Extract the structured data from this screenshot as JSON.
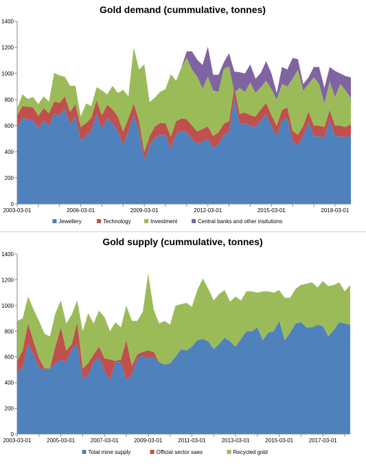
{
  "chart_data": [
    {
      "type": "area",
      "stacked": true,
      "title": "Gold demand (cummulative, tonnes)",
      "xlabel": "",
      "ylabel": "",
      "ylim": [
        0,
        1400
      ],
      "yticks": [
        "0",
        "200",
        "400",
        "600",
        "800",
        "1000",
        "1200",
        "1400"
      ],
      "xtick_labels": [
        "2003-03-01",
        "2006-03-01",
        "2009-03-01",
        "2012-03-01",
        "2015-03-01",
        "2018-03-01"
      ],
      "x": [
        "2003-03-01",
        "2003-06-01",
        "2003-09-01",
        "2003-12-01",
        "2004-03-01",
        "2004-06-01",
        "2004-09-01",
        "2004-12-01",
        "2005-03-01",
        "2005-06-01",
        "2005-09-01",
        "2005-12-01",
        "2006-03-01",
        "2006-06-01",
        "2006-09-01",
        "2006-12-01",
        "2007-03-01",
        "2007-06-01",
        "2007-09-01",
        "2007-12-01",
        "2008-03-01",
        "2008-06-01",
        "2008-09-01",
        "2008-12-01",
        "2009-03-01",
        "2009-06-01",
        "2009-09-01",
        "2009-12-01",
        "2010-03-01",
        "2010-06-01",
        "2010-09-01",
        "2010-12-01",
        "2011-03-01",
        "2011-06-01",
        "2011-09-01",
        "2011-12-01",
        "2012-03-01",
        "2012-06-01",
        "2012-09-01",
        "2012-12-01",
        "2013-03-01",
        "2013-06-01",
        "2013-09-01",
        "2013-12-01",
        "2014-03-01",
        "2014-06-01",
        "2014-09-01",
        "2014-12-01",
        "2015-03-01",
        "2015-06-01",
        "2015-09-01",
        "2015-12-01",
        "2016-03-01",
        "2016-06-01",
        "2016-09-01",
        "2016-12-01",
        "2017-03-01",
        "2017-06-01",
        "2017-09-01",
        "2017-12-01",
        "2018-03-01",
        "2018-06-01",
        "2018-09-01",
        "2018-12-01"
      ],
      "series": [
        {
          "name": "Jewellery",
          "color": "#4f81bd",
          "values": [
            580,
            660,
            650,
            640,
            580,
            640,
            600,
            690,
            680,
            730,
            610,
            670,
            490,
            520,
            560,
            690,
            570,
            660,
            620,
            560,
            450,
            560,
            680,
            560,
            340,
            450,
            510,
            530,
            530,
            420,
            540,
            560,
            550,
            500,
            460,
            480,
            500,
            430,
            460,
            530,
            550,
            810,
            610,
            620,
            600,
            590,
            640,
            690,
            600,
            520,
            640,
            660,
            480,
            450,
            520,
            630,
            520,
            520,
            510,
            640,
            520,
            520,
            510,
            530
          ]
        },
        {
          "name": "Technology",
          "color": "#c0504d",
          "values": [
            100,
            90,
            95,
            100,
            95,
            95,
            95,
            95,
            95,
            95,
            95,
            95,
            100,
            100,
            100,
            105,
            110,
            100,
            105,
            110,
            105,
            95,
            90,
            80,
            60,
            70,
            85,
            90,
            90,
            95,
            95,
            95,
            100,
            100,
            95,
            95,
            95,
            90,
            90,
            85,
            85,
            85,
            80,
            80,
            80,
            80,
            85,
            85,
            80,
            80,
            80,
            80,
            80,
            80,
            80,
            80,
            80,
            80,
            80,
            80,
            80,
            80,
            80,
            80
          ]
        },
        {
          "name": "Investment",
          "color": "#9bbb59",
          "values": [
            50,
            90,
            60,
            80,
            90,
            90,
            90,
            220,
            210,
            150,
            200,
            140,
            80,
            150,
            90,
            100,
            190,
            80,
            180,
            180,
            320,
            170,
            430,
            390,
            670,
            260,
            220,
            240,
            260,
            480,
            310,
            390,
            470,
            430,
            420,
            310,
            380,
            350,
            310,
            420,
            420,
            -40,
            200,
            160,
            250,
            180,
            170,
            170,
            200,
            200,
            200,
            160,
            400,
            500,
            270,
            210,
            370,
            320,
            180,
            220,
            220,
            320,
            280,
            200
          ]
        },
        {
          "name": "Central banks and other insitutions",
          "color": "#8064a2",
          "values": [
            0,
            0,
            0,
            0,
            0,
            0,
            0,
            0,
            0,
            0,
            0,
            0,
            0,
            0,
            0,
            0,
            0,
            0,
            0,
            0,
            0,
            0,
            0,
            0,
            0,
            0,
            0,
            0,
            0,
            0,
            0,
            0,
            50,
            140,
            130,
            180,
            230,
            120,
            130,
            50,
            100,
            160,
            120,
            140,
            140,
            110,
            110,
            150,
            120,
            50,
            130,
            130,
            160,
            80,
            50,
            50,
            80,
            130,
            120,
            110,
            200,
            80,
            110,
            160
          ]
        }
      ],
      "legend": [
        "Jewellery",
        "Technology",
        "Investment",
        "Central banks and other insitutions"
      ],
      "legend_placement": "bottom",
      "grid": false
    },
    {
      "type": "area",
      "stacked": true,
      "title": "Gold supply (cummulative, tonnes)",
      "xlabel": "",
      "ylabel": "",
      "ylim": [
        0,
        1400
      ],
      "yticks": [
        "0",
        "200",
        "400",
        "600",
        "800",
        "1000",
        "1200",
        "1400"
      ],
      "xtick_labels": [
        "2003-03-01",
        "2005-03-01",
        "2007-03-01",
        "2009-03-01",
        "2011-03-01",
        "2013-03-01",
        "2015-03-01",
        "2017-03-01"
      ],
      "x": [
        "2003-03-01",
        "2003-06-01",
        "2003-09-01",
        "2003-12-01",
        "2004-03-01",
        "2004-06-01",
        "2004-09-01",
        "2004-12-01",
        "2005-03-01",
        "2005-06-01",
        "2005-09-01",
        "2005-12-01",
        "2006-03-01",
        "2006-06-01",
        "2006-09-01",
        "2006-12-01",
        "2007-03-01",
        "2007-06-01",
        "2007-09-01",
        "2007-12-01",
        "2008-03-01",
        "2008-06-01",
        "2008-09-01",
        "2008-12-01",
        "2009-03-01",
        "2009-06-01",
        "2009-09-01",
        "2009-12-01",
        "2010-03-01",
        "2010-06-01",
        "2010-09-01",
        "2010-12-01",
        "2011-03-01",
        "2011-06-01",
        "2011-09-01",
        "2011-12-01",
        "2012-03-01",
        "2012-06-01",
        "2012-09-01",
        "2012-12-01",
        "2013-03-01",
        "2013-06-01",
        "2013-09-01",
        "2013-12-01",
        "2014-03-01",
        "2014-06-01",
        "2014-09-01",
        "2014-12-01",
        "2015-03-01",
        "2015-06-01",
        "2015-09-01",
        "2015-12-01",
        "2016-03-01",
        "2016-06-01",
        "2016-09-01",
        "2016-12-01",
        "2017-03-01",
        "2017-06-01",
        "2017-09-01",
        "2017-12-01",
        "2018-03-01",
        "2018-06-01"
      ],
      "series": [
        {
          "name": "Total mine supply",
          "color": "#4f81bd",
          "values": [
            480,
            520,
            700,
            620,
            520,
            500,
            510,
            550,
            580,
            560,
            660,
            700,
            430,
            460,
            560,
            600,
            490,
            420,
            560,
            560,
            420,
            460,
            590,
            610,
            590,
            600,
            560,
            540,
            550,
            600,
            660,
            650,
            680,
            730,
            740,
            720,
            660,
            700,
            750,
            720,
            680,
            740,
            800,
            800,
            830,
            730,
            790,
            800,
            880,
            730,
            790,
            860,
            870,
            830,
            830,
            850,
            840,
            760,
            810,
            870,
            860,
            850
          ]
        },
        {
          "name": "Official sector saes",
          "color": "#c0504d",
          "values": [
            90,
            130,
            160,
            100,
            70,
            10,
            0,
            130,
            250,
            90,
            40,
            170,
            80,
            90,
            60,
            80,
            100,
            160,
            10,
            20,
            310,
            70,
            30,
            30,
            60,
            40,
            0,
            0,
            0,
            0,
            0,
            0,
            0,
            0,
            0,
            0,
            0,
            0,
            0,
            0,
            0,
            0,
            0,
            0,
            0,
            0,
            0,
            0,
            0,
            0,
            0,
            0,
            0,
            0,
            0,
            0,
            0,
            0,
            0,
            0,
            0,
            0
          ]
        },
        {
          "name": "Recycled gold",
          "color": "#9bbb59",
          "values": [
            310,
            250,
            210,
            250,
            290,
            270,
            250,
            260,
            210,
            210,
            230,
            170,
            290,
            390,
            240,
            280,
            320,
            220,
            300,
            250,
            270,
            350,
            260,
            310,
            600,
            330,
            300,
            340,
            300,
            400,
            350,
            370,
            310,
            390,
            470,
            410,
            380,
            390,
            370,
            310,
            390,
            300,
            310,
            310,
            270,
            380,
            320,
            300,
            240,
            330,
            270,
            270,
            290,
            340,
            350,
            290,
            350,
            390,
            350,
            310,
            250,
            310
          ]
        }
      ],
      "legend": [
        "Total mine supply",
        "Official sector saes",
        "Recycled gold"
      ],
      "legend_placement": "bottom",
      "grid": false
    }
  ]
}
